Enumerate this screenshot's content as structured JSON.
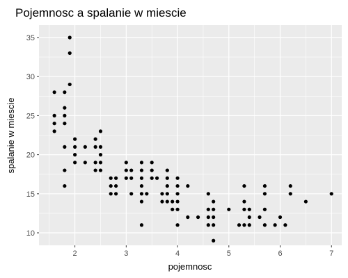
{
  "chart_data": {
    "type": "scatter",
    "title": "Pojemnosc a spalanie w miescie",
    "xlabel": "pojemnosc",
    "ylabel": "spalanie w miescie",
    "xlim": [
      1.3,
      7.2
    ],
    "ylim": [
      8.4,
      36.6
    ],
    "xticks": [
      2,
      3,
      4,
      5,
      6,
      7
    ],
    "yticks": [
      10,
      15,
      20,
      25,
      30,
      35
    ],
    "grid": true,
    "colors": {
      "panel": "#ebebeb",
      "grid": "#ffffff",
      "point": "#000000"
    },
    "points": [
      [
        1.6,
        28
      ],
      [
        1.6,
        25
      ],
      [
        1.6,
        24
      ],
      [
        1.6,
        23
      ],
      [
        1.8,
        28
      ],
      [
        1.8,
        26
      ],
      [
        1.8,
        25
      ],
      [
        1.8,
        24
      ],
      [
        1.8,
        21
      ],
      [
        1.8,
        18
      ],
      [
        1.8,
        16
      ],
      [
        1.9,
        35
      ],
      [
        1.9,
        33
      ],
      [
        1.9,
        29
      ],
      [
        2.0,
        22
      ],
      [
        2.0,
        21
      ],
      [
        2.0,
        20
      ],
      [
        2.0,
        19
      ],
      [
        2.2,
        21
      ],
      [
        2.2,
        19
      ],
      [
        2.4,
        22
      ],
      [
        2.4,
        21
      ],
      [
        2.4,
        19
      ],
      [
        2.4,
        18
      ],
      [
        2.5,
        23
      ],
      [
        2.5,
        21
      ],
      [
        2.5,
        20
      ],
      [
        2.5,
        19
      ],
      [
        2.5,
        18
      ],
      [
        2.7,
        17
      ],
      [
        2.7,
        16
      ],
      [
        2.7,
        15
      ],
      [
        2.8,
        17
      ],
      [
        2.8,
        16
      ],
      [
        2.8,
        15
      ],
      [
        3.0,
        19
      ],
      [
        3.0,
        18
      ],
      [
        3.0,
        17
      ],
      [
        3.1,
        18
      ],
      [
        3.1,
        17
      ],
      [
        3.1,
        15
      ],
      [
        3.3,
        19
      ],
      [
        3.3,
        18
      ],
      [
        3.3,
        17
      ],
      [
        3.3,
        16
      ],
      [
        3.3,
        15
      ],
      [
        3.3,
        14
      ],
      [
        3.3,
        11
      ],
      [
        3.4,
        15
      ],
      [
        3.5,
        19
      ],
      [
        3.5,
        18
      ],
      [
        3.5,
        17
      ],
      [
        3.6,
        17
      ],
      [
        3.7,
        15
      ],
      [
        3.7,
        14
      ],
      [
        3.8,
        18
      ],
      [
        3.8,
        17
      ],
      [
        3.8,
        16
      ],
      [
        3.8,
        15
      ],
      [
        3.8,
        14
      ],
      [
        3.9,
        14
      ],
      [
        3.9,
        13
      ],
      [
        4.0,
        17
      ],
      [
        4.0,
        16
      ],
      [
        4.0,
        15
      ],
      [
        4.0,
        14
      ],
      [
        4.0,
        13
      ],
      [
        4.0,
        11
      ],
      [
        4.2,
        16
      ],
      [
        4.2,
        12
      ],
      [
        4.4,
        12
      ],
      [
        4.6,
        15
      ],
      [
        4.6,
        13
      ],
      [
        4.6,
        12
      ],
      [
        4.6,
        11
      ],
      [
        4.7,
        14
      ],
      [
        4.7,
        13
      ],
      [
        4.7,
        12
      ],
      [
        4.7,
        11
      ],
      [
        4.7,
        9
      ],
      [
        5.0,
        13
      ],
      [
        5.2,
        11
      ],
      [
        5.3,
        16
      ],
      [
        5.3,
        14
      ],
      [
        5.3,
        13
      ],
      [
        5.3,
        11
      ],
      [
        5.4,
        13
      ],
      [
        5.4,
        12
      ],
      [
        5.4,
        11
      ],
      [
        5.6,
        12
      ],
      [
        5.7,
        16
      ],
      [
        5.7,
        15
      ],
      [
        5.7,
        13
      ],
      [
        5.7,
        11
      ],
      [
        5.9,
        11
      ],
      [
        6.0,
        12
      ],
      [
        6.1,
        11
      ],
      [
        6.2,
        16
      ],
      [
        6.2,
        15
      ],
      [
        6.5,
        14
      ],
      [
        7.0,
        15
      ]
    ]
  }
}
